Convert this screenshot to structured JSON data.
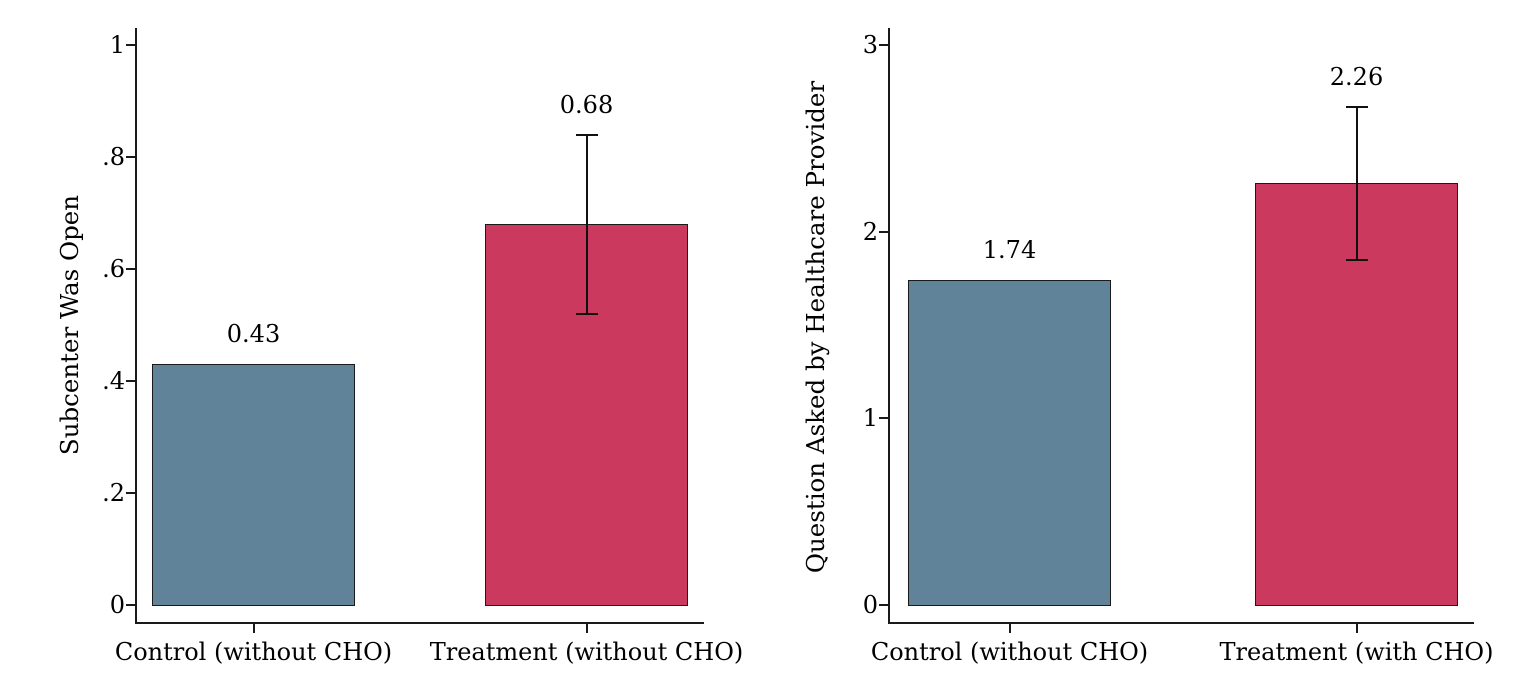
{
  "figure": {
    "background": "#ffffff",
    "description": "Two-panel bar chart comparing control and treatment groups"
  },
  "colors": {
    "control_bar": "#61839a",
    "treatment_bar": "#cc395e",
    "bar_outline": "#1a1a1a",
    "axis": "#1a1a1a",
    "text": "#000000"
  },
  "chart_data": [
    {
      "type": "bar",
      "title": "",
      "ylabel": "Subcenter Was Open",
      "xlabel": "",
      "ylim": [
        0,
        1
      ],
      "grid": false,
      "legend": "none",
      "ytick_values": [
        0,
        0.2,
        0.4,
        0.6,
        0.8,
        1
      ],
      "ytick_labels": [
        "0",
        ".2",
        ".4",
        ".6",
        ".8",
        "1"
      ],
      "categories": [
        "Control (without CHO)",
        "Treatment (without CHO)"
      ],
      "values": [
        0.43,
        0.68
      ],
      "value_labels": [
        "0.43",
        "0.68"
      ],
      "bar_colors": [
        "#61839a",
        "#cc395e"
      ],
      "error_bars": [
        null,
        {
          "low": 0.52,
          "high": 0.84
        }
      ]
    },
    {
      "type": "bar",
      "title": "",
      "ylabel": "Question Asked by Healthcare Provider",
      "xlabel": "",
      "ylim": [
        0,
        3
      ],
      "grid": false,
      "legend": "none",
      "ytick_values": [
        0,
        1,
        2,
        3
      ],
      "ytick_labels": [
        "0",
        "1",
        "2",
        "3"
      ],
      "categories": [
        "Control (without CHO)",
        "Treatment (with CHO)"
      ],
      "values": [
        1.74,
        2.26
      ],
      "value_labels": [
        "1.74",
        "2.26"
      ],
      "bar_colors": [
        "#61839a",
        "#cc395e"
      ],
      "error_bars": [
        null,
        {
          "low": 1.85,
          "high": 2.67
        }
      ]
    }
  ]
}
